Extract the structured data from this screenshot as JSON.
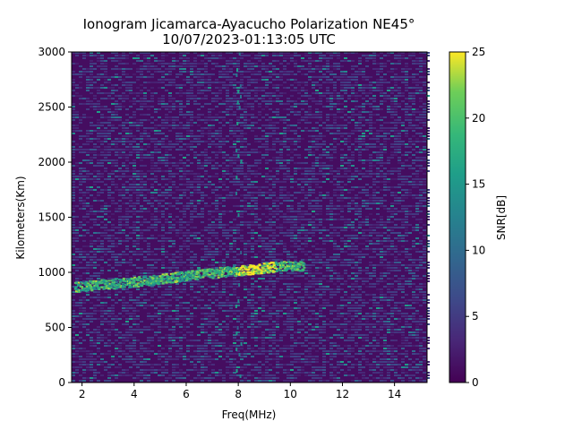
{
  "chart_data": {
    "type": "heatmap",
    "title_line1": "Ionogram Jicamarca-Ayacucho Polarization NE45°",
    "title_line2": "10/07/2023-01:13:05 UTC",
    "xlabel": "Freq(MHz)",
    "ylabel": "Kilometers(Km)",
    "colorbar_label": "SNR[dB]",
    "colormap": "viridis",
    "xlim": [
      1.6,
      15.25
    ],
    "ylim": [
      0,
      3000
    ],
    "clim": [
      0,
      25
    ],
    "x_ticks": [
      2,
      4,
      6,
      8,
      10,
      12,
      14
    ],
    "x_tick_labels": [
      "2",
      "4",
      "6",
      "8",
      "10",
      "12",
      "14"
    ],
    "y_ticks": [
      0,
      500,
      1000,
      1500,
      2000,
      2500,
      3000
    ],
    "y_tick_labels": [
      "0",
      "500",
      "1000",
      "1500",
      "2000",
      "2500",
      "3000"
    ],
    "colorbar_ticks": [
      0,
      5,
      10,
      15,
      20,
      25
    ],
    "colorbar_tick_labels": [
      "0",
      "5",
      "10",
      "15",
      "20",
      "25"
    ],
    "echo_trace": {
      "x": [
        1.7,
        2.5,
        3.5,
        4.5,
        5.5,
        6.5,
        7.5,
        8.5,
        9.5,
        10.5
      ],
      "y": [
        870,
        890,
        910,
        930,
        960,
        990,
        1010,
        1030,
        1060,
        1060
      ]
    },
    "grid": false
  }
}
